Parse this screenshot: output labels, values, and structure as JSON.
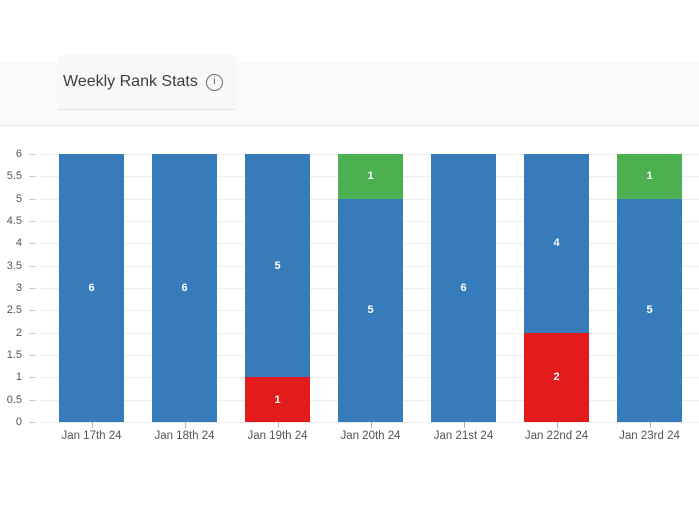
{
  "header": {
    "title": "Weekly Rank Stats",
    "info_icon": "i"
  },
  "chart_data": {
    "type": "bar",
    "variant": "stacked-column",
    "title": "Weekly Rank Stats",
    "categories": [
      "Jan 17th 24",
      "Jan 18th 24",
      "Jan 19th 24",
      "Jan 20th 24",
      "Jan 21st 24",
      "Jan 22nd 24",
      "Jan 23rd 24"
    ],
    "series": [
      {
        "name": "red",
        "color": "#e31b1c",
        "values": [
          0,
          0,
          1,
          0,
          0,
          2,
          0
        ]
      },
      {
        "name": "blue",
        "color": "#377cba",
        "values": [
          6,
          6,
          5,
          5,
          6,
          4,
          5
        ]
      },
      {
        "name": "green",
        "color": "#4caf50",
        "values": [
          0,
          0,
          0,
          1,
          0,
          0,
          1
        ]
      }
    ],
    "stack_order": "bottom-to-top",
    "stack_totals": [
      6,
      6,
      6,
      6,
      6,
      6,
      6
    ],
    "data_labels": true,
    "ylim": [
      0,
      6
    ],
    "ytick_step": 0.5,
    "yticks": [
      0,
      0.5,
      1,
      1.5,
      2,
      2.5,
      3,
      3.5,
      4,
      4.5,
      5,
      5.5,
      6
    ],
    "grid": true,
    "legend": "none",
    "xlabel": "",
    "ylabel": ""
  },
  "colors": {
    "band_bg": "#fafafa",
    "band_border": "#e9e9e9",
    "gridline": "#ededed",
    "axis_text": "#555555",
    "bar_label_text": "#ffffff"
  }
}
